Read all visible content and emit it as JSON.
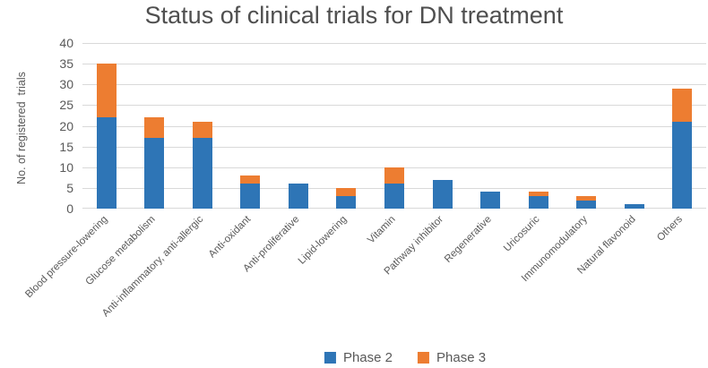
{
  "chart_data": {
    "type": "bar",
    "stacked": true,
    "title": "Status of clinical trials for DN treatment",
    "ylabel": "No. of registered  trials",
    "xlabel": "",
    "categories": [
      "Blood pressure-lowering",
      "Glucose metabolism",
      "Anti-inflammatory, anti-allergic",
      "Anti-oxidant",
      "Anti-proliferative",
      "Lipid-lowering",
      "Vitamin",
      "Pathway inhibitor",
      "Regenerative",
      "Uricosuric",
      "Immunomodulatory",
      "Natural flavonoid",
      "Others"
    ],
    "series": [
      {
        "name": "Phase 2",
        "color": "#2E75B6",
        "values": [
          22,
          17,
          17,
          6,
          6,
          3,
          6,
          7,
          4,
          3,
          2,
          1,
          21
        ]
      },
      {
        "name": "Phase 3",
        "color": "#ED7D31",
        "values": [
          13,
          5,
          4,
          2,
          0,
          2,
          4,
          0,
          0,
          1,
          1,
          0,
          8
        ]
      }
    ],
    "totals": [
      35,
      22,
      21,
      8,
      6,
      5,
      10,
      7,
      4,
      4,
      3,
      1,
      29
    ],
    "ylim": [
      0,
      40
    ],
    "ytick_step": 5,
    "yticks": [
      0,
      5,
      10,
      15,
      20,
      25,
      30,
      35,
      40
    ],
    "grid": true,
    "gridline_color": "#D9D9D9",
    "legend_position": "bottom",
    "legend": [
      "Phase 2",
      "Phase 3"
    ]
  }
}
